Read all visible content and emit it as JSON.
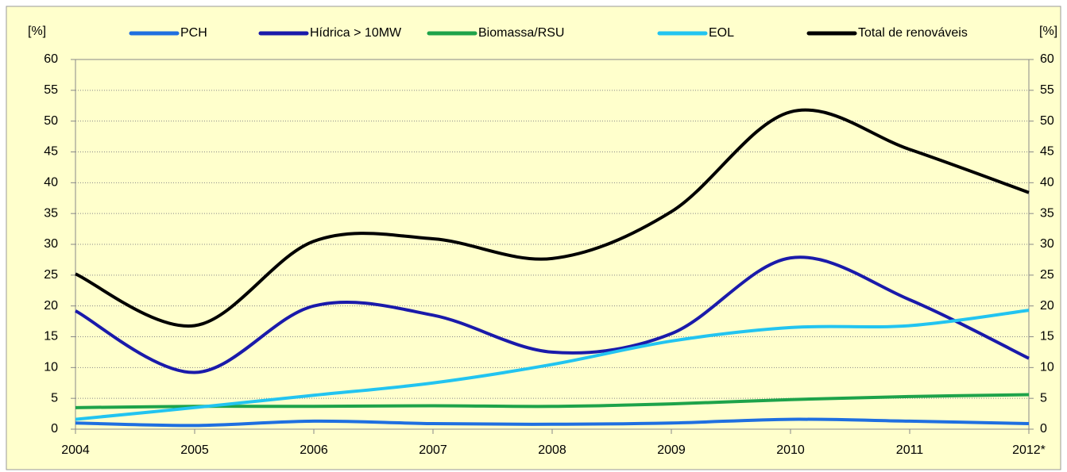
{
  "chart_data": {
    "type": "line",
    "ylabel": "[%]",
    "y2label": "[%]",
    "categories": [
      "2004",
      "2005",
      "2006",
      "2007",
      "2008",
      "2009",
      "2010",
      "2011",
      "2012*"
    ],
    "series": [
      {
        "name": "PCH",
        "color": "#1f6fe0",
        "values": [
          1.0,
          0.6,
          1.3,
          0.9,
          0.8,
          1.0,
          1.6,
          1.3,
          0.9
        ]
      },
      {
        "name": "Hídrica > 10MW",
        "color": "#1a1aaa",
        "values": [
          19.2,
          9.2,
          20.0,
          18.5,
          12.5,
          15.5,
          27.8,
          21.0,
          11.5
        ]
      },
      {
        "name": "Biomassa/RSU",
        "color": "#1ea34a",
        "values": [
          3.5,
          3.7,
          3.7,
          3.8,
          3.7,
          4.1,
          4.8,
          5.3,
          5.6
        ]
      },
      {
        "name": "EOL",
        "color": "#22c4f0",
        "values": [
          1.6,
          3.5,
          5.5,
          7.5,
          10.5,
          14.3,
          16.5,
          16.8,
          19.3
        ]
      },
      {
        "name": "Total de renováveis",
        "color": "#000000",
        "values": [
          25.2,
          16.8,
          30.5,
          30.9,
          27.7,
          35.3,
          51.5,
          45.4,
          38.4
        ]
      }
    ],
    "ylim": [
      0,
      60
    ],
    "yticks": [
      0,
      5,
      10,
      15,
      20,
      25,
      30,
      35,
      40,
      45,
      50,
      55,
      60
    ],
    "y2lim": [
      0,
      60
    ],
    "y2ticks": [
      0,
      5,
      10,
      15,
      20,
      25,
      30,
      35,
      40,
      45,
      50,
      55,
      60
    ],
    "grid": true,
    "legend": "top"
  }
}
